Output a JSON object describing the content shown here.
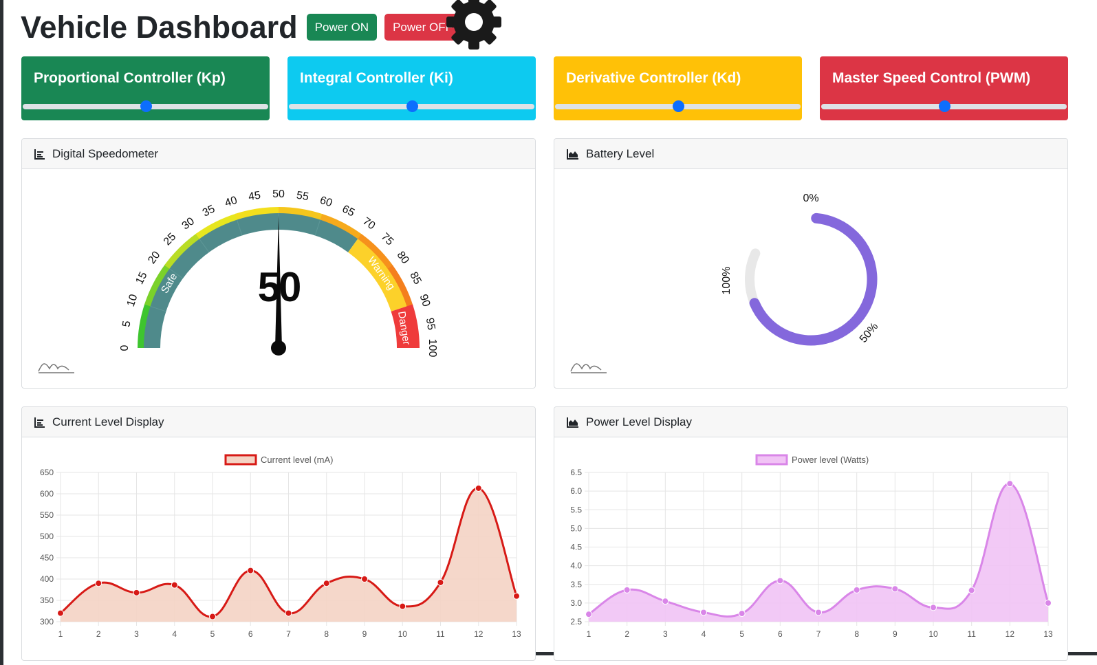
{
  "header": {
    "title": "Vehicle Dashboard",
    "power_on_label": "Power ON",
    "power_off_label": "Power OFF"
  },
  "controllers": [
    {
      "label": "Proportional Controller (Kp)",
      "color": "#198754",
      "value_pct": 50
    },
    {
      "label": "Integral Controller (Ki)",
      "color": "#0dcaf0",
      "value_pct": 50
    },
    {
      "label": "Derivative Controller (Kd)",
      "color": "#ffc107",
      "value_pct": 50
    },
    {
      "label": "Master Speed Control (PWM)",
      "color": "#dc3545",
      "value_pct": 50
    }
  ],
  "speedometer": {
    "title": "Digital Speedometer",
    "value": 50,
    "value_text": "50",
    "min": 0,
    "max": 100,
    "ticks": [
      "0",
      "5",
      "10",
      "15",
      "20",
      "25",
      "30",
      "35",
      "40",
      "45",
      "50",
      "55",
      "60",
      "65",
      "70",
      "75",
      "80",
      "85",
      "90",
      "95",
      "100"
    ],
    "zones": [
      {
        "label": "Safe",
        "from": 0,
        "to": 70,
        "color": "#4f8a8b"
      },
      {
        "label": "Warning",
        "from": 70,
        "to": 90,
        "color": "#fcd12a"
      },
      {
        "label": "Danger",
        "from": 90,
        "to": 100,
        "color": "#ef3b3b"
      }
    ]
  },
  "battery": {
    "title": "Battery Level",
    "labels": [
      "0%",
      "50%",
      "100%"
    ],
    "level_pct": 80,
    "color": "#8468dc"
  },
  "current_chart": {
    "title": "Current Level Display",
    "chart_data": {
      "type": "line",
      "x": [
        1,
        2,
        3,
        4,
        5,
        6,
        7,
        8,
        9,
        10,
        11,
        12,
        13
      ],
      "series": [
        {
          "name": "Current level (mA)",
          "values": [
            320,
            390,
            368,
            386,
            312,
            420,
            320,
            390,
            400,
            336,
            392,
            613,
            360
          ]
        }
      ],
      "ylim": [
        300,
        650
      ],
      "yticks": [
        "650",
        "600",
        "550",
        "500",
        "450",
        "400",
        "350",
        "300"
      ],
      "line_color": "#d71a16",
      "fill_color": "#f4d3c4"
    }
  },
  "power_chart": {
    "title": "Power Level Display",
    "chart_data": {
      "type": "line",
      "x": [
        1,
        2,
        3,
        4,
        5,
        6,
        7,
        8,
        9,
        10,
        11,
        12,
        13
      ],
      "series": [
        {
          "name": "Power level (Watts)",
          "values": [
            2.7,
            3.35,
            3.05,
            2.75,
            2.72,
            3.6,
            2.75,
            3.35,
            3.38,
            2.88,
            3.34,
            6.2,
            3.0
          ]
        }
      ],
      "ylim": [
        2.5,
        6.5
      ],
      "yticks": [
        "6.5",
        "6.0",
        "5.5",
        "5.0",
        "4.5",
        "4.0",
        "3.5",
        "3.0",
        "2.5"
      ],
      "line_color": "#d986e8",
      "fill_color": "#f1c3f5"
    }
  }
}
